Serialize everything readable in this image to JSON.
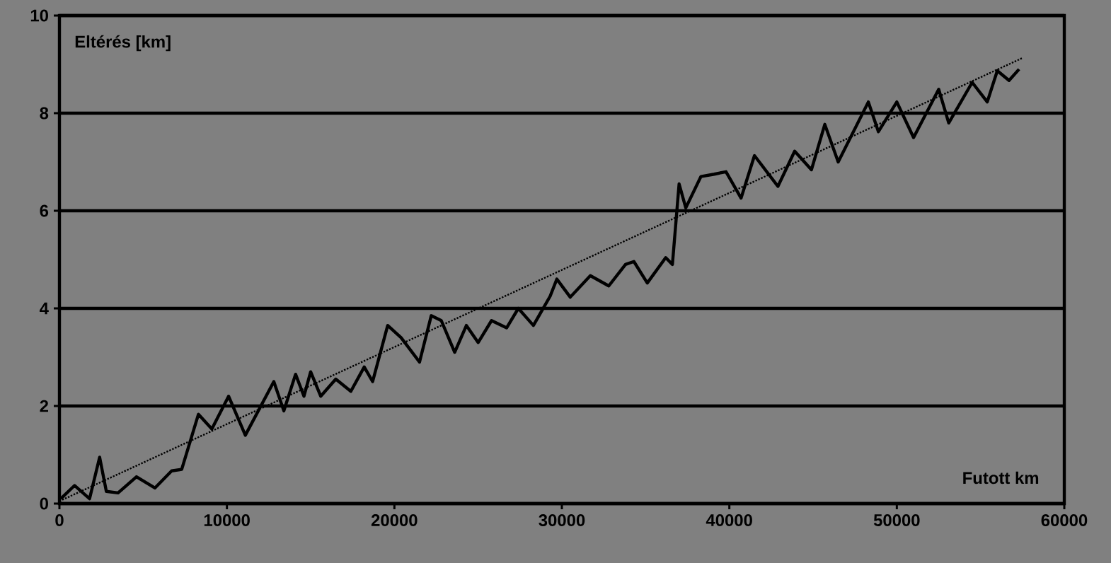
{
  "chart_data": {
    "type": "line",
    "xlabel": "Futott km",
    "ylabel": "Eltérés [km]",
    "xlim": [
      0,
      60000
    ],
    "ylim": [
      0,
      10
    ],
    "xticks": [
      0,
      10000,
      20000,
      30000,
      40000,
      50000,
      60000
    ],
    "yticks": [
      0,
      2,
      4,
      6,
      8,
      10
    ],
    "grid": "y",
    "series": [
      {
        "color": "#000000",
        "line_style": "solid",
        "x": [
          80,
          900,
          1800,
          2400,
          2800,
          3500,
          4600,
          5700,
          6700,
          7300,
          8300,
          9100,
          10100,
          11100,
          12800,
          13400,
          14100,
          14600,
          15000,
          15600,
          16500,
          17400,
          18200,
          18700,
          19600,
          20400,
          21500,
          22200,
          22800,
          23600,
          24300,
          25000,
          25800,
          26700,
          27400,
          28300,
          29300,
          29700,
          30500,
          31700,
          32800,
          33800,
          34300,
          35100,
          36200,
          36600,
          37000,
          37400,
          38300,
          39100,
          39800,
          40700,
          41500,
          42900,
          43900,
          44900,
          45700,
          46500,
          48300,
          48900,
          50000,
          51000,
          52500,
          53100,
          54500,
          55400,
          56000,
          56700,
          57300
        ],
        "values": [
          0.1,
          0.37,
          0.1,
          0.95,
          0.25,
          0.22,
          0.55,
          0.32,
          0.67,
          0.7,
          1.83,
          1.53,
          2.2,
          1.4,
          2.5,
          1.9,
          2.65,
          2.2,
          2.7,
          2.2,
          2.55,
          2.3,
          2.8,
          2.5,
          3.65,
          3.4,
          2.9,
          3.85,
          3.75,
          3.1,
          3.65,
          3.3,
          3.75,
          3.6,
          4.0,
          3.65,
          4.25,
          4.6,
          4.23,
          4.67,
          4.46,
          4.9,
          4.96,
          4.52,
          5.04,
          4.9,
          6.55,
          6.06,
          6.7,
          6.75,
          6.8,
          6.26,
          7.13,
          6.5,
          7.22,
          6.84,
          7.77,
          7.0,
          8.23,
          7.62,
          8.23,
          7.5,
          8.49,
          7.8,
          8.63,
          8.23,
          8.87,
          8.67,
          8.9
        ]
      },
      {
        "color": "#000000",
        "line_style": "dotted",
        "x": [
          0,
          57500
        ],
        "values": [
          0.05,
          9.13
        ]
      }
    ]
  }
}
